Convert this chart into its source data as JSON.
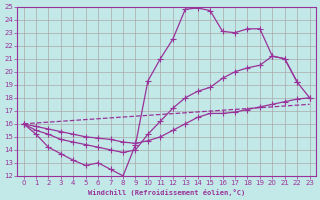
{
  "xlabel": "Windchill (Refroidissement éolien,°C)",
  "bg_color": "#c2e8e8",
  "line_color": "#993399",
  "grid_color": "#aaaaaa",
  "xlim": [
    -0.5,
    23.5
  ],
  "ylim": [
    12,
    25
  ],
  "yticks": [
    12,
    13,
    14,
    15,
    16,
    17,
    18,
    19,
    20,
    21,
    22,
    23,
    24,
    25
  ],
  "xticks": [
    0,
    1,
    2,
    3,
    4,
    5,
    6,
    7,
    8,
    9,
    10,
    11,
    12,
    13,
    14,
    15,
    16,
    17,
    18,
    19,
    20,
    21,
    22,
    23
  ],
  "line1_x": [
    0,
    1,
    2,
    3,
    4,
    5,
    6,
    7,
    8,
    9,
    10,
    11,
    12,
    13,
    14,
    15,
    16,
    17,
    18,
    19,
    20,
    21,
    22
  ],
  "line1_y": [
    16.0,
    15.2,
    14.2,
    13.7,
    13.2,
    12.8,
    13.0,
    12.5,
    12.0,
    14.4,
    19.3,
    21.0,
    22.5,
    24.8,
    24.9,
    24.7,
    23.1,
    23.0,
    23.3,
    23.3,
    21.2,
    21.0,
    19.2
  ],
  "line2_x": [
    0,
    1,
    2,
    3,
    4,
    5,
    6,
    7,
    8,
    9,
    10,
    11,
    12,
    13,
    14,
    15,
    16,
    17,
    18,
    19,
    20,
    21,
    22,
    23
  ],
  "line2_y": [
    16.0,
    15.5,
    15.2,
    14.8,
    14.6,
    14.4,
    14.2,
    14.0,
    13.8,
    14.0,
    15.2,
    16.2,
    17.2,
    18.0,
    18.5,
    18.8,
    19.5,
    20.0,
    20.3,
    20.5,
    21.2,
    21.0,
    19.2,
    18.0
  ],
  "line3_x": [
    0,
    1,
    2,
    3,
    4,
    5,
    6,
    7,
    8,
    9,
    10,
    11,
    12,
    13,
    14,
    15,
    16,
    17,
    18,
    19,
    20,
    21,
    22,
    23
  ],
  "line3_y": [
    16.0,
    15.8,
    15.6,
    15.4,
    15.2,
    15.0,
    14.9,
    14.8,
    14.6,
    14.5,
    14.7,
    15.0,
    15.5,
    16.0,
    16.5,
    16.8,
    16.8,
    16.9,
    17.1,
    17.3,
    17.5,
    17.7,
    17.9,
    18.0
  ],
  "line4_x": [
    0,
    23
  ],
  "line4_y": [
    16.0,
    17.5
  ],
  "marker": "+",
  "marker_size": 5,
  "linewidth": 0.9
}
